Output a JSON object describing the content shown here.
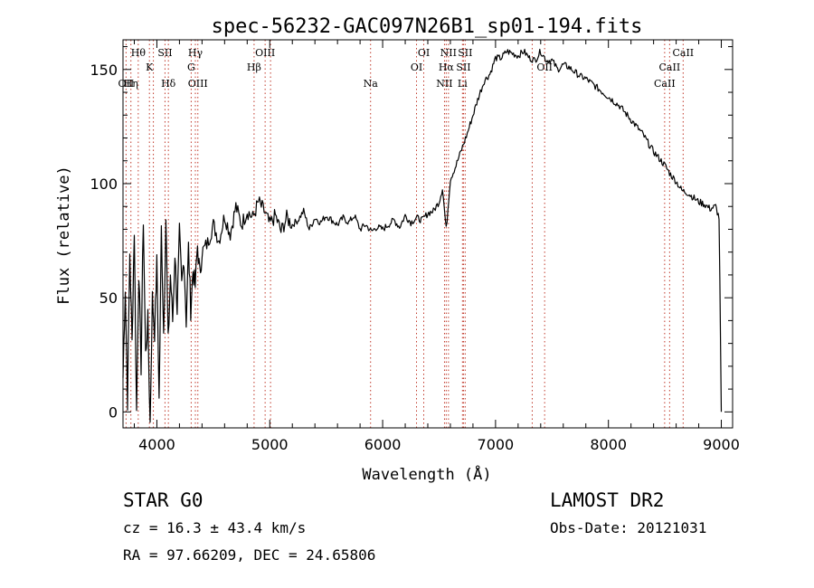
{
  "chart_data": {
    "type": "line",
    "title": "spec-56232-GAC097N26B1_sp01-194.fits",
    "xlabel": "Wavelength (Å)",
    "ylabel": "Flux (relative)",
    "xlim": [
      3700,
      9100
    ],
    "ylim": [
      -7,
      163
    ],
    "xticks": [
      4000,
      5000,
      6000,
      7000,
      8000,
      9000
    ],
    "yticks": [
      0,
      50,
      100,
      150
    ],
    "grid": false,
    "line_color": "#000000",
    "marker_color": "#c0392b",
    "spectrum": {
      "x": [
        3700,
        3720,
        3740,
        3760,
        3780,
        3800,
        3820,
        3840,
        3860,
        3880,
        3900,
        3920,
        3940,
        3960,
        3980,
        4000,
        4020,
        4040,
        4060,
        4080,
        4100,
        4120,
        4140,
        4160,
        4180,
        4200,
        4220,
        4240,
        4260,
        4280,
        4300,
        4320,
        4340,
        4360,
        4380,
        4400,
        4450,
        4500,
        4550,
        4600,
        4650,
        4700,
        4750,
        4800,
        4850,
        4900,
        4950,
        5000,
        5050,
        5100,
        5150,
        5200,
        5250,
        5300,
        5350,
        5400,
        5450,
        5500,
        5550,
        5600,
        5650,
        5700,
        5750,
        5800,
        5850,
        5900,
        5950,
        6000,
        6050,
        6100,
        6150,
        6200,
        6250,
        6300,
        6350,
        6400,
        6450,
        6500,
        6530,
        6563,
        6600,
        6650,
        6700,
        6750,
        6800,
        6850,
        6900,
        6950,
        7000,
        7050,
        7100,
        7150,
        7200,
        7250,
        7300,
        7350,
        7400,
        7450,
        7500,
        7550,
        7600,
        7650,
        7700,
        7750,
        7800,
        7850,
        7900,
        7950,
        8000,
        8050,
        8100,
        8150,
        8200,
        8250,
        8300,
        8350,
        8400,
        8450,
        8500,
        8550,
        8600,
        8650,
        8700,
        8750,
        8800,
        8850,
        8900,
        8950,
        8980,
        9000
      ],
      "y": [
        15,
        55,
        5,
        70,
        30,
        80,
        0,
        62,
        20,
        85,
        25,
        40,
        -5,
        50,
        35,
        65,
        5,
        80,
        35,
        85,
        30,
        60,
        40,
        70,
        45,
        78,
        55,
        68,
        40,
        72,
        45,
        62,
        55,
        73,
        60,
        70,
        74,
        82,
        75,
        86,
        78,
        90,
        82,
        88,
        85,
        92,
        88,
        82,
        86,
        79,
        85,
        82,
        84,
        88,
        80,
        85,
        83,
        86,
        84,
        82,
        85,
        83,
        86,
        80,
        82,
        79,
        81,
        80,
        82,
        84,
        81,
        86,
        83,
        85,
        84,
        87,
        88,
        92,
        98,
        80,
        102,
        108,
        115,
        122,
        130,
        138,
        145,
        148,
        155,
        155,
        158,
        157,
        156,
        158,
        155,
        154,
        158,
        154,
        154,
        150,
        152,
        151,
        149,
        147,
        146,
        144,
        142,
        140,
        138,
        136,
        134,
        131,
        128,
        125,
        122,
        118,
        114,
        111,
        108,
        104,
        101,
        97,
        96,
        94,
        92,
        91,
        89,
        90,
        85,
        0
      ]
    },
    "line_markers": [
      {
        "wavelength": 3727,
        "row": 3,
        "label": "OII"
      },
      {
        "wavelength": 3770,
        "row": 3,
        "label": "Hη"
      },
      {
        "wavelength": 3835,
        "row": 1,
        "label": "Hθ"
      },
      {
        "wavelength": 3934,
        "row": 2,
        "label": "K"
      },
      {
        "wavelength": 3969,
        "row": 2,
        "label": ""
      },
      {
        "wavelength": 4072,
        "row": 1,
        "label": "SII"
      },
      {
        "wavelength": 4102,
        "row": 3,
        "label": "Hδ"
      },
      {
        "wavelength": 4304,
        "row": 2,
        "label": "G"
      },
      {
        "wavelength": 4341,
        "row": 1,
        "label": "Hγ"
      },
      {
        "wavelength": 4363,
        "row": 3,
        "label": "OIII"
      },
      {
        "wavelength": 4861,
        "row": 2,
        "label": "Hβ"
      },
      {
        "wavelength": 4959,
        "row": 1,
        "label": "OIII"
      },
      {
        "wavelength": 5007,
        "row": 1,
        "label": ""
      },
      {
        "wavelength": 5893,
        "row": 3,
        "label": "Na"
      },
      {
        "wavelength": 6300,
        "row": 2,
        "label": "OI"
      },
      {
        "wavelength": 6364,
        "row": 1,
        "label": "OI"
      },
      {
        "wavelength": 6548,
        "row": 3,
        "label": "NII"
      },
      {
        "wavelength": 6563,
        "row": 2,
        "label": "Hα"
      },
      {
        "wavelength": 6583,
        "row": 1,
        "label": "NII"
      },
      {
        "wavelength": 6707,
        "row": 3,
        "label": "Li"
      },
      {
        "wavelength": 6716,
        "row": 2,
        "label": "SII"
      },
      {
        "wavelength": 6731,
        "row": 1,
        "label": "SII"
      },
      {
        "wavelength": 7325,
        "row": 0,
        "label": ""
      },
      {
        "wavelength": 7435,
        "row": 2,
        "label": "OII"
      },
      {
        "wavelength": 8498,
        "row": 3,
        "label": "CaII"
      },
      {
        "wavelength": 8542,
        "row": 2,
        "label": "CaII"
      },
      {
        "wavelength": 8662,
        "row": 1,
        "label": "CaII"
      }
    ]
  },
  "info": {
    "classification": "STAR    G0",
    "redshift": "cz = 16.3 ± 43.4 km/s",
    "coords": "RA =  97.66209, DEC =  24.65806",
    "survey": "LAMOST DR2",
    "obs_date": "Obs-Date: 20121031"
  }
}
